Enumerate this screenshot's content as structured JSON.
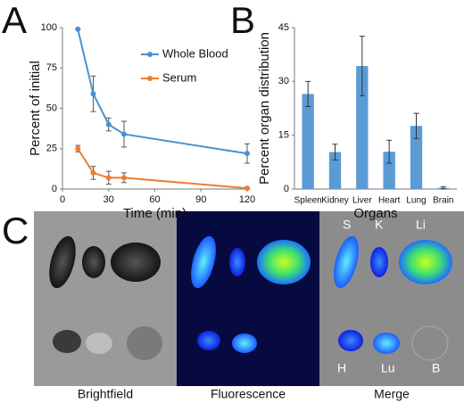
{
  "panel_labels": [
    "A",
    "B",
    "C"
  ],
  "chart_data": [
    {
      "type": "line",
      "x_label": "Time (min)",
      "y_label": "Percent of initial",
      "x": [
        10,
        20,
        30,
        40,
        120
      ],
      "xlim": [
        0,
        120
      ],
      "xticks": [
        0,
        30,
        60,
        90,
        120
      ],
      "ylim": [
        0,
        100
      ],
      "yticks": [
        0,
        25,
        50,
        75,
        100
      ],
      "series": [
        {
          "name": "Whole Blood",
          "color": "#4a90d0",
          "values": [
            99,
            59,
            40,
            34,
            22
          ],
          "errors": [
            0,
            11,
            4,
            8,
            6
          ]
        },
        {
          "name": "Serum",
          "color": "#ed7d31",
          "values": [
            25,
            10,
            7,
            7,
            0.5
          ],
          "errors": [
            2,
            4,
            4,
            3,
            0.5
          ]
        }
      ]
    },
    {
      "type": "bar",
      "x_label": "Organs",
      "y_label": "Percent organ distribution",
      "categories": [
        "Spleen",
        "Kidney",
        "Liver",
        "Heart",
        "Lung",
        "Brain"
      ],
      "values": [
        26.5,
        10.3,
        34.3,
        10.4,
        17.6,
        0.3
      ],
      "errors": [
        3.5,
        2.2,
        8.3,
        3.2,
        3.5,
        0.3
      ],
      "color": "#5b9bd5",
      "ylim": [
        0,
        45
      ],
      "yticks": [
        0,
        15,
        30,
        45
      ]
    }
  ],
  "image_panels": [
    "Brightfield",
    "Fluorescence",
    "Merge"
  ],
  "organ_labels": [
    "S",
    "K",
    "Li",
    "H",
    "Lu",
    "B"
  ]
}
